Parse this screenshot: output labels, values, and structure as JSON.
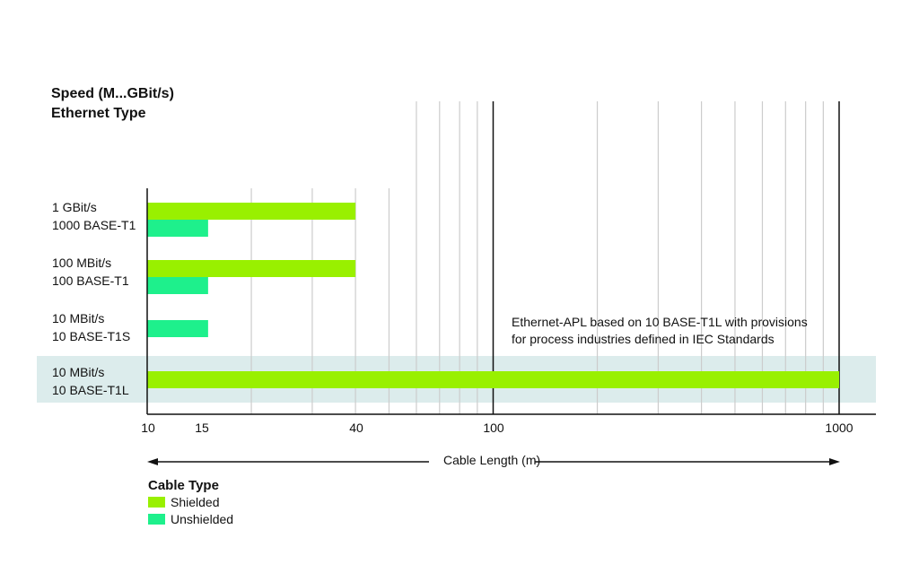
{
  "chart_data": {
    "type": "bar",
    "orientation": "horizontal",
    "y_title_lines": [
      "Speed (M...GBit/s)",
      "Ethernet Type"
    ],
    "categories": [
      {
        "speed": "1 GBit/s",
        "type": "1000 BASE-T1"
      },
      {
        "speed": "100 MBit/s",
        "type": "100 BASE-T1"
      },
      {
        "speed": "10 MBit/s",
        "type": "10 BASE-T1S"
      },
      {
        "speed": "10 MBit/s",
        "type": "10 BASE-T1L"
      }
    ],
    "series": [
      {
        "name": "Shielded",
        "color": "#99f000",
        "values": [
          40,
          40,
          null,
          1000
        ]
      },
      {
        "name": "Unshielded",
        "color": "#1ef08c",
        "values": [
          15,
          15,
          15,
          null
        ]
      }
    ],
    "xlabel": "Cable Length (m)",
    "x_scale": "log",
    "xlim": [
      10,
      1000
    ],
    "x_tick_labels": [
      "10",
      "15",
      "40",
      "100",
      "1000"
    ],
    "x_tick_values": [
      10,
      15,
      40,
      100,
      1000
    ],
    "highlight_category_index": 3,
    "highlight_color": "#dcecec",
    "annotation_lines": [
      "Ethernet-APL based on 10 BASE-T1L with provisions",
      "for process industries defined in IEC Standards"
    ],
    "legend_title": "Cable Type",
    "legend_placement": "bottom-left",
    "grid": true
  }
}
